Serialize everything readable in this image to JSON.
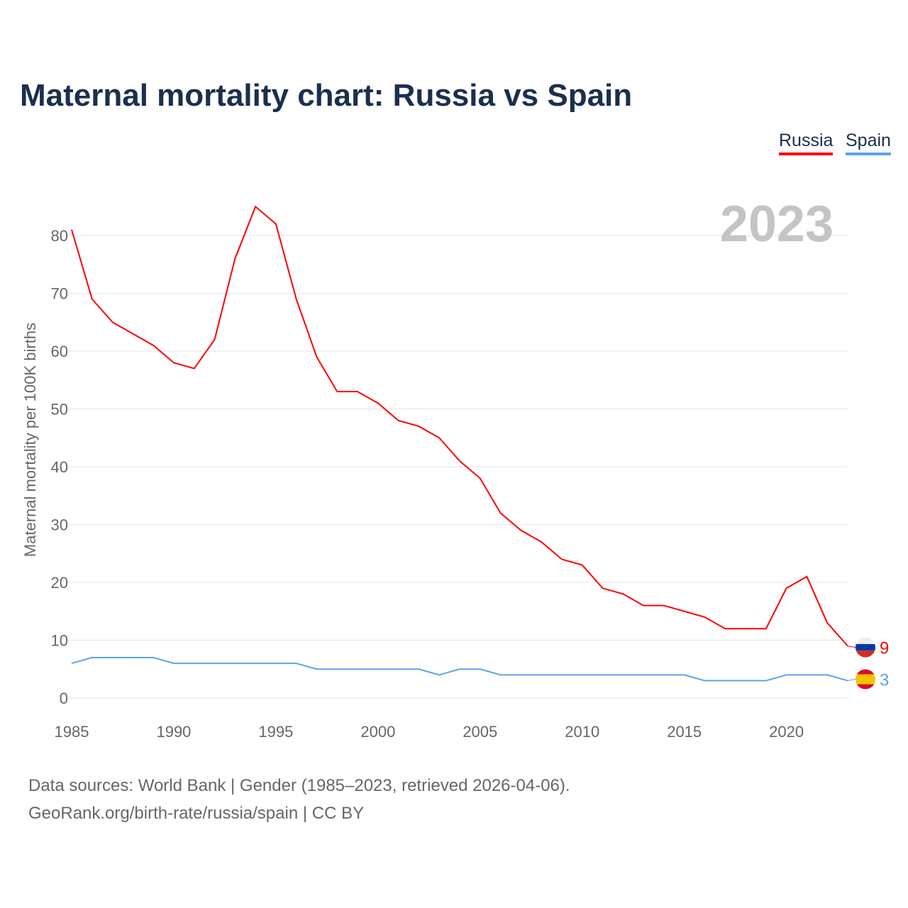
{
  "title": "Maternal mortality chart: Russia vs Spain",
  "year_label": "2023",
  "source_line1": "Data sources: World Bank | Gender (1985–2023, retrieved 2026-04-06).",
  "source_line2": "GeoRank.org/birth-rate/russia/spain | CC BY",
  "chart_data": {
    "type": "line",
    "title": "Maternal mortality chart: Russia vs Spain",
    "xlabel": "",
    "ylabel": "Maternal mortality per 100K births",
    "x": [
      1985,
      1986,
      1987,
      1988,
      1989,
      1990,
      1991,
      1992,
      1993,
      1994,
      1995,
      1996,
      1997,
      1998,
      1999,
      2000,
      2001,
      2002,
      2003,
      2004,
      2005,
      2006,
      2007,
      2008,
      2009,
      2010,
      2011,
      2012,
      2013,
      2014,
      2015,
      2016,
      2017,
      2018,
      2019,
      2020,
      2021,
      2022,
      2023
    ],
    "xticks": [
      1985,
      1990,
      1995,
      2000,
      2005,
      2010,
      2015,
      2020
    ],
    "yticks": [
      0,
      10,
      20,
      30,
      40,
      50,
      60,
      70,
      80
    ],
    "xlim": [
      1985,
      2023
    ],
    "ylim": [
      0,
      85
    ],
    "grid": true,
    "legend_placement": "top-right",
    "series": [
      {
        "name": "Russia",
        "color": "#ff0000",
        "end_label": "9",
        "values": [
          81,
          69,
          65,
          63,
          61,
          58,
          57,
          62,
          76,
          85,
          82,
          69,
          59,
          53,
          53,
          51,
          48,
          47,
          45,
          41,
          38,
          32,
          29,
          27,
          24,
          23,
          19,
          18,
          16,
          16,
          15,
          14,
          12,
          12,
          12,
          19,
          21,
          13,
          9
        ]
      },
      {
        "name": "Spain",
        "color": "#5ba3ea",
        "end_label": "3",
        "values": [
          6,
          7,
          7,
          7,
          7,
          6,
          6,
          6,
          6,
          6,
          6,
          6,
          5,
          5,
          5,
          5,
          5,
          5,
          4,
          5,
          5,
          4,
          4,
          4,
          4,
          4,
          4,
          4,
          4,
          4,
          4,
          3,
          3,
          3,
          3,
          4,
          4,
          4,
          3
        ]
      }
    ]
  }
}
